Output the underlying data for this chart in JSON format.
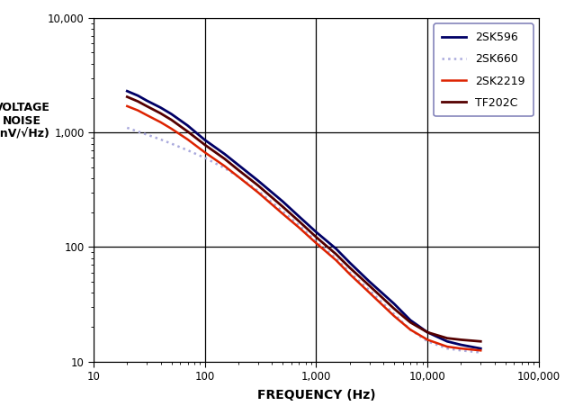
{
  "title": "",
  "xlabel": "FREQUENCY (Hz)",
  "ylabel": "VOLTAGE\nNOISE\n(nV/√Hz)",
  "xlim": [
    10,
    100000
  ],
  "ylim": [
    10,
    10000
  ],
  "background_color": "#ffffff",
  "grid_color": "#000000",
  "series": [
    {
      "label": "2SK596",
      "color": "#000066",
      "linestyle": "-",
      "linewidth": 2.0,
      "x": [
        20,
        25,
        30,
        40,
        50,
        70,
        100,
        150,
        200,
        300,
        500,
        700,
        1000,
        1500,
        2000,
        3000,
        5000,
        7000,
        10000,
        15000,
        20000,
        30000
      ],
      "y": [
        2300,
        2100,
        1900,
        1650,
        1450,
        1150,
        860,
        650,
        520,
        380,
        250,
        185,
        135,
        97,
        73,
        50,
        32,
        23,
        18,
        15,
        14,
        13
      ]
    },
    {
      "label": "2SK660",
      "color": "#AAAADD",
      "linestyle": ":",
      "linewidth": 1.8,
      "x": [
        20,
        25,
        30,
        40,
        50,
        70,
        100,
        150,
        200,
        300,
        500,
        700,
        1000,
        1500,
        2000,
        3000,
        5000,
        7000,
        10000,
        15000,
        20000,
        30000
      ],
      "y": [
        1100,
        1020,
        960,
        870,
        800,
        700,
        600,
        490,
        410,
        310,
        205,
        155,
        112,
        80,
        60,
        42,
        26,
        19,
        15,
        13,
        12.5,
        12
      ]
    },
    {
      "label": "2SK2219",
      "color": "#DD2200",
      "linestyle": "-",
      "linewidth": 1.8,
      "x": [
        20,
        25,
        30,
        40,
        50,
        70,
        100,
        150,
        200,
        300,
        500,
        700,
        1000,
        1500,
        2000,
        3000,
        5000,
        7000,
        10000,
        15000,
        20000,
        30000
      ],
      "y": [
        1700,
        1560,
        1420,
        1230,
        1080,
        870,
        670,
        510,
        410,
        300,
        195,
        148,
        108,
        77,
        58,
        40,
        25,
        19,
        15.5,
        13.5,
        13,
        12.5
      ]
    },
    {
      "label": "TF202C",
      "color": "#550000",
      "linestyle": "-",
      "linewidth": 2.0,
      "x": [
        20,
        25,
        30,
        40,
        50,
        70,
        100,
        150,
        200,
        300,
        500,
        700,
        1000,
        1500,
        2000,
        3000,
        5000,
        7000,
        10000,
        15000,
        20000,
        30000
      ],
      "y": [
        2050,
        1870,
        1700,
        1470,
        1290,
        1020,
        780,
        590,
        470,
        345,
        225,
        168,
        122,
        87,
        66,
        46,
        29,
        22,
        18,
        16,
        15.5,
        15
      ]
    }
  ],
  "legend_loc": "upper right",
  "legend_frameon": true,
  "legend_edgecolor": "#6666AA",
  "legend_facecolor": "#ffffff"
}
